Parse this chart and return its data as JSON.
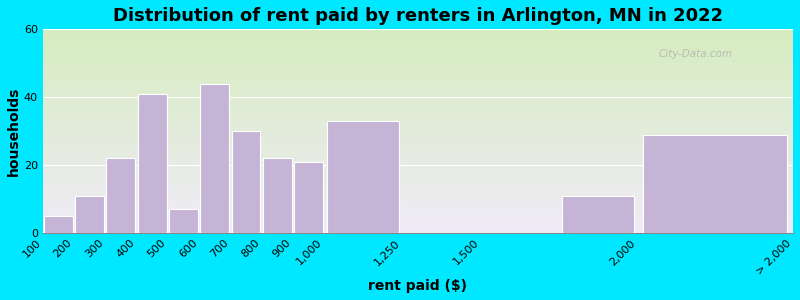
{
  "title": "Distribution of rent paid by renters in Arlington, MN in 2022",
  "xlabel": "rent paid ($)",
  "ylabel": "households",
  "bar_lefts": [
    100,
    200,
    300,
    400,
    500,
    600,
    700,
    800,
    900,
    1000,
    1250,
    1750,
    2000
  ],
  "bar_widths": [
    100,
    100,
    100,
    100,
    100,
    100,
    100,
    100,
    100,
    250,
    250,
    250,
    500
  ],
  "bar_values": [
    5,
    11,
    22,
    41,
    7,
    44,
    30,
    22,
    21,
    33,
    0,
    11,
    29
  ],
  "bar_color": "#c5b4d6",
  "bar_edge_color": "#ffffff",
  "ylim": [
    0,
    60
  ],
  "xlim": [
    100,
    2500
  ],
  "yticks": [
    0,
    20,
    40,
    60
  ],
  "xtick_positions": [
    100,
    200,
    300,
    400,
    500,
    600,
    700,
    800,
    900,
    1000,
    1250,
    1500,
    2000,
    2500
  ],
  "xtick_labels": [
    "100",
    "200",
    "300",
    "400",
    "500",
    "600",
    "700",
    "800",
    "900",
    "1,000",
    "1,250",
    "1,500",
    "2,000",
    "> 2,000"
  ],
  "bg_outer": "#00e8ff",
  "bg_grad_top_color": "#d5ecbf",
  "bg_grad_bottom_color": "#f0ebf7",
  "title_fontsize": 13,
  "axis_label_fontsize": 10,
  "tick_fontsize": 8,
  "watermark": "City-Data.com"
}
